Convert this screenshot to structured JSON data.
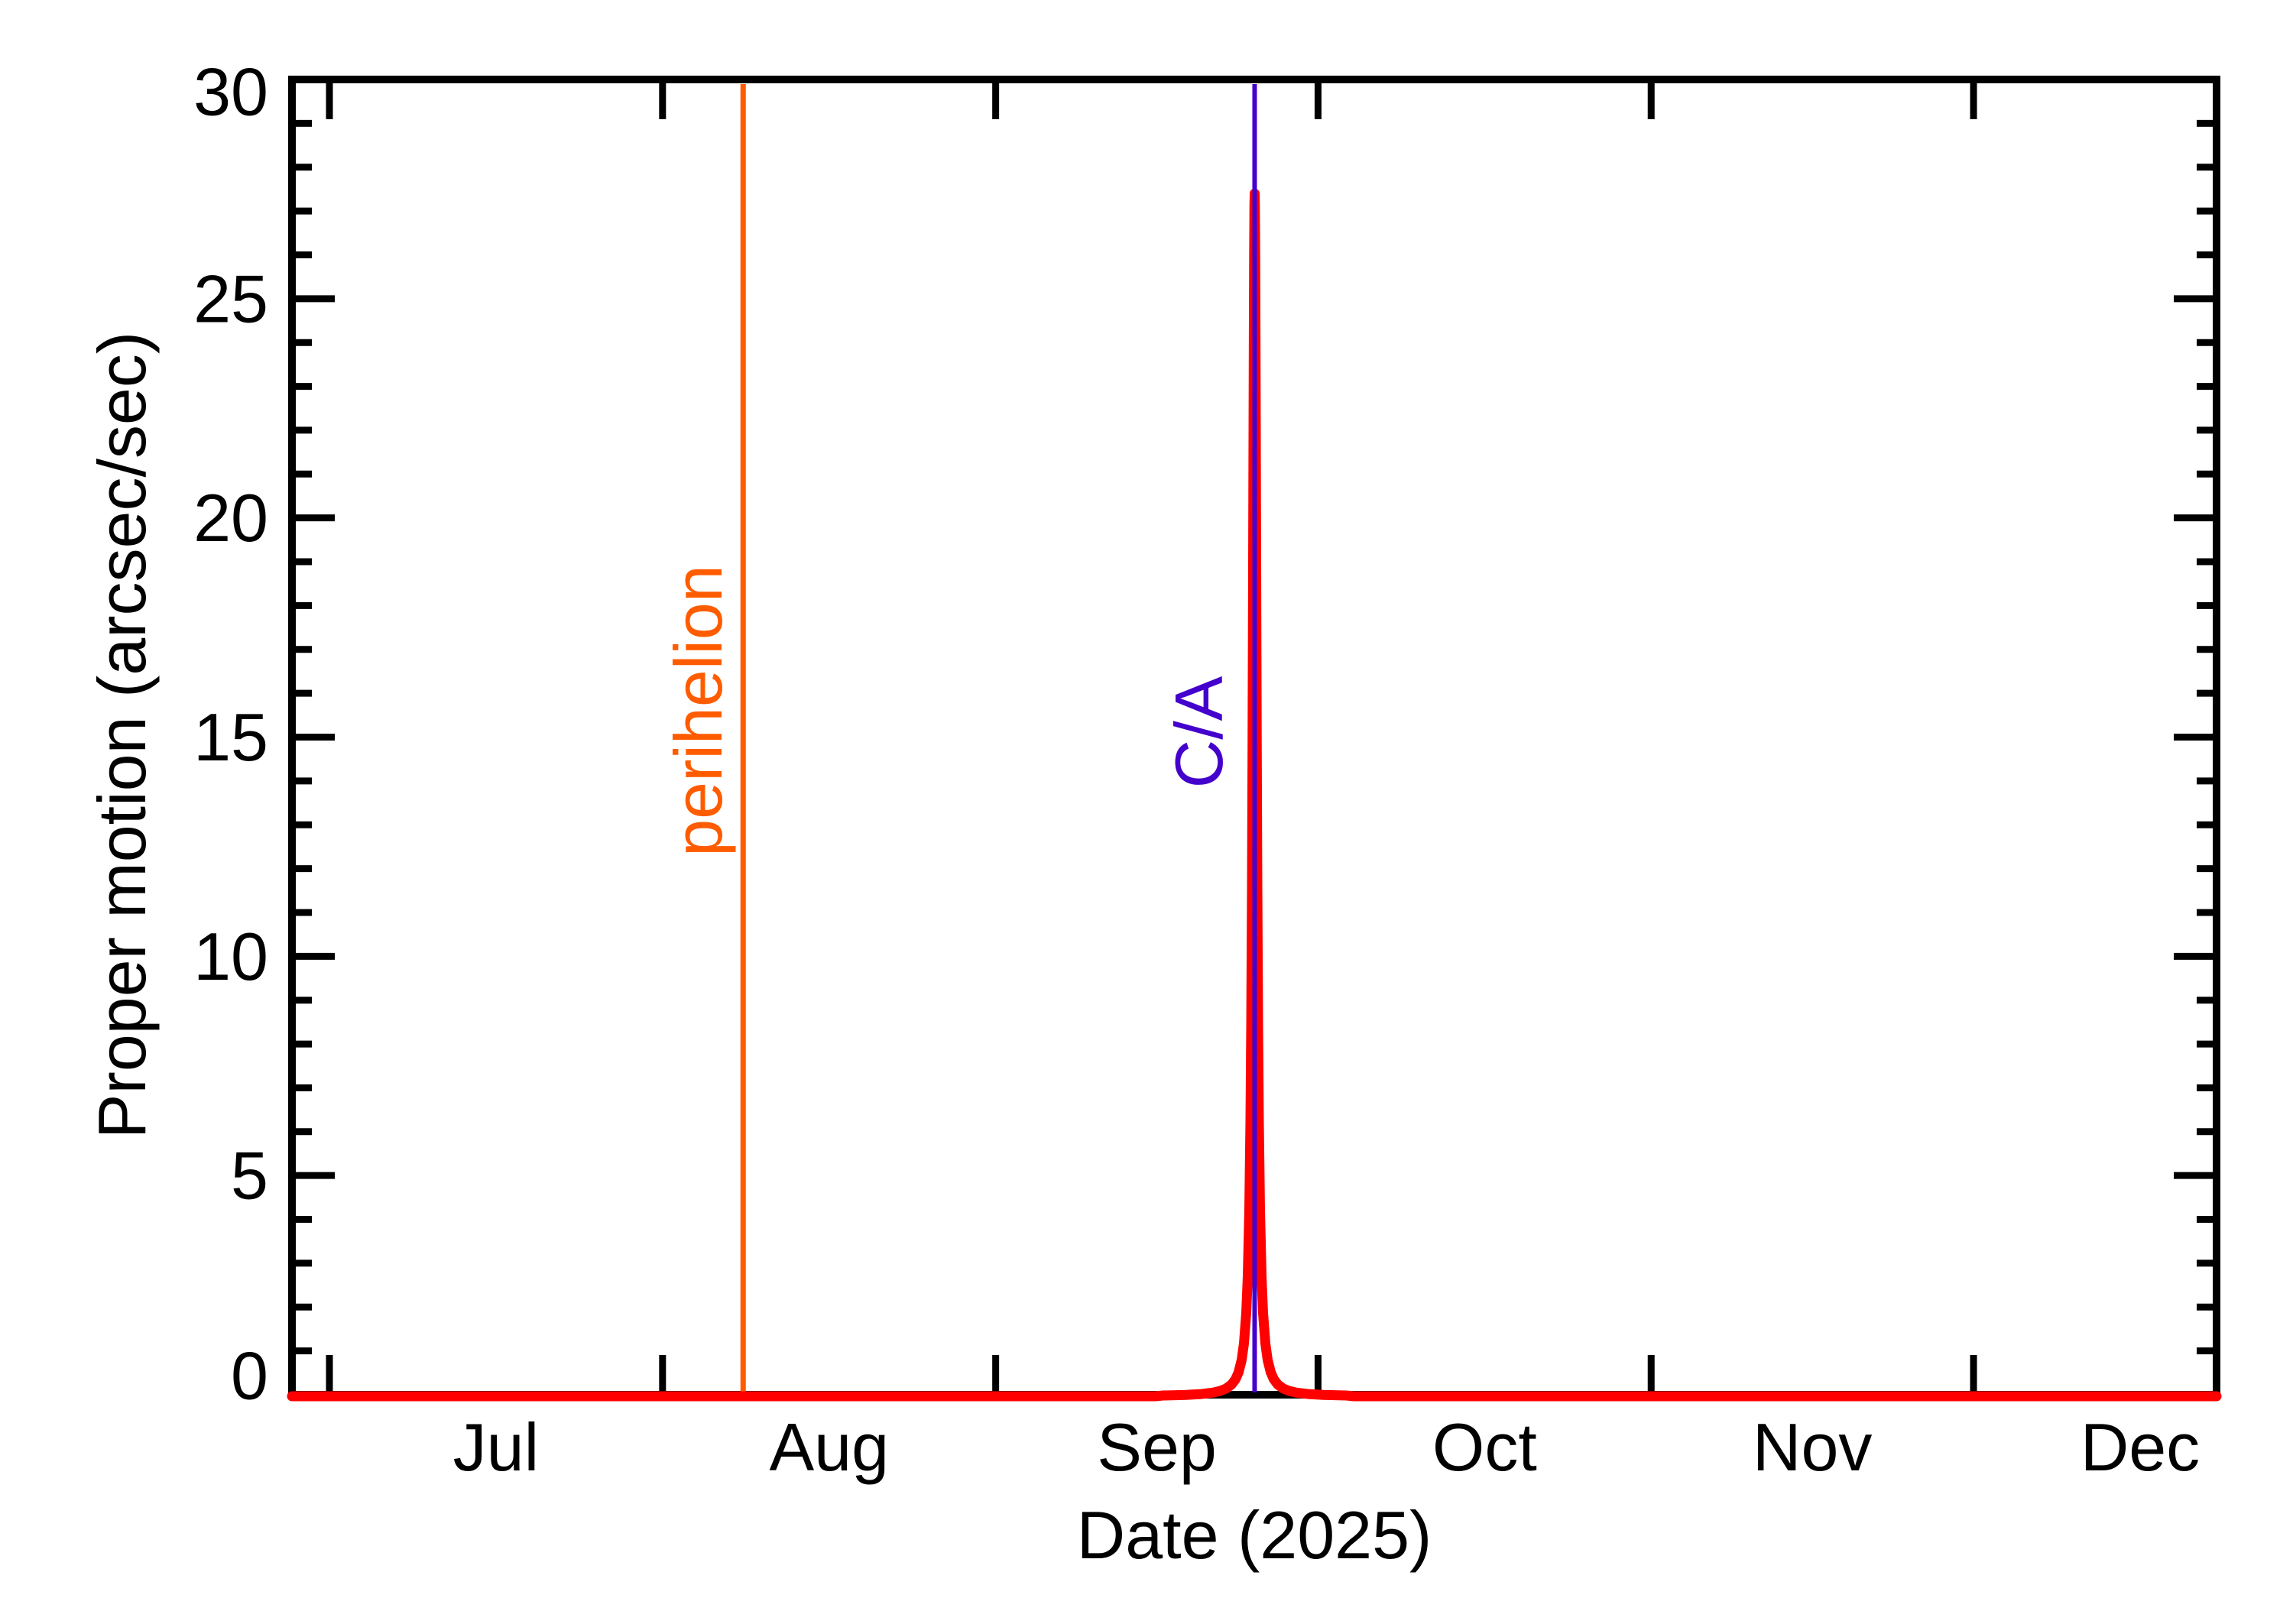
{
  "page": {
    "background": "#ffffff"
  },
  "chart_data": {
    "type": "line",
    "title": "",
    "xlabel": "Date (2025)",
    "ylabel": "Proper motion (arcsec/sec)",
    "x_axis": {
      "unit": "days relative to 2025-Jul-01",
      "domain_days": [
        -3.5,
        175.6
      ],
      "months": [
        {
          "label": "Jul",
          "start_day": 0,
          "label_day": 15.5
        },
        {
          "label": "Aug",
          "start_day": 31,
          "label_day": 46.5
        },
        {
          "label": "Sep",
          "start_day": 62,
          "label_day": 77
        },
        {
          "label": "Oct",
          "start_day": 92,
          "label_day": 107.5
        },
        {
          "label": "Nov",
          "start_day": 123,
          "label_day": 138
        },
        {
          "label": "Dec",
          "start_day": 153,
          "label_day": 168.5
        }
      ]
    },
    "y_axis": {
      "min": 0,
      "max": 30,
      "major_step": 5,
      "minor_step": 1,
      "tick_values": [
        0,
        5,
        10,
        15,
        20,
        25,
        30
      ],
      "tick_labels": [
        "0",
        "5",
        "10",
        "15",
        "20",
        "25",
        "30"
      ]
    },
    "series": [
      {
        "name": "proper-motion",
        "color": "#ff0000",
        "baseline_value": 0.05,
        "spike": {
          "day": 86.1,
          "approx_date": "2025-09-25",
          "peak_value": 27.4,
          "shape": "lorentzian",
          "gamma_days": 0.21
        },
        "sample_points": [
          [
            -3.5,
            0.05
          ],
          [
            15.5,
            0.05
          ],
          [
            38.5,
            0.06
          ],
          [
            62,
            0.08
          ],
          [
            80,
            0.1
          ],
          [
            84,
            0.5
          ],
          [
            85.5,
            3.0
          ],
          [
            86.1,
            27.4
          ],
          [
            86.7,
            3.0
          ],
          [
            88,
            0.5
          ],
          [
            92,
            0.1
          ],
          [
            107.5,
            0.06
          ],
          [
            138,
            0.05
          ],
          [
            168.5,
            0.05
          ],
          [
            175.6,
            0.05
          ]
        ]
      }
    ],
    "annotations": [
      {
        "label": "perihelion",
        "color": "#ff5c00",
        "day": 38.5,
        "approx_date": "2025-08-08",
        "type": "vline"
      },
      {
        "label": "C/A",
        "color": "#4400cc",
        "day": 86.1,
        "approx_date": "2025-09-25",
        "type": "vline"
      }
    ],
    "axis_color": "#000000",
    "text_color": "#000000",
    "grid": false,
    "legend": false
  }
}
